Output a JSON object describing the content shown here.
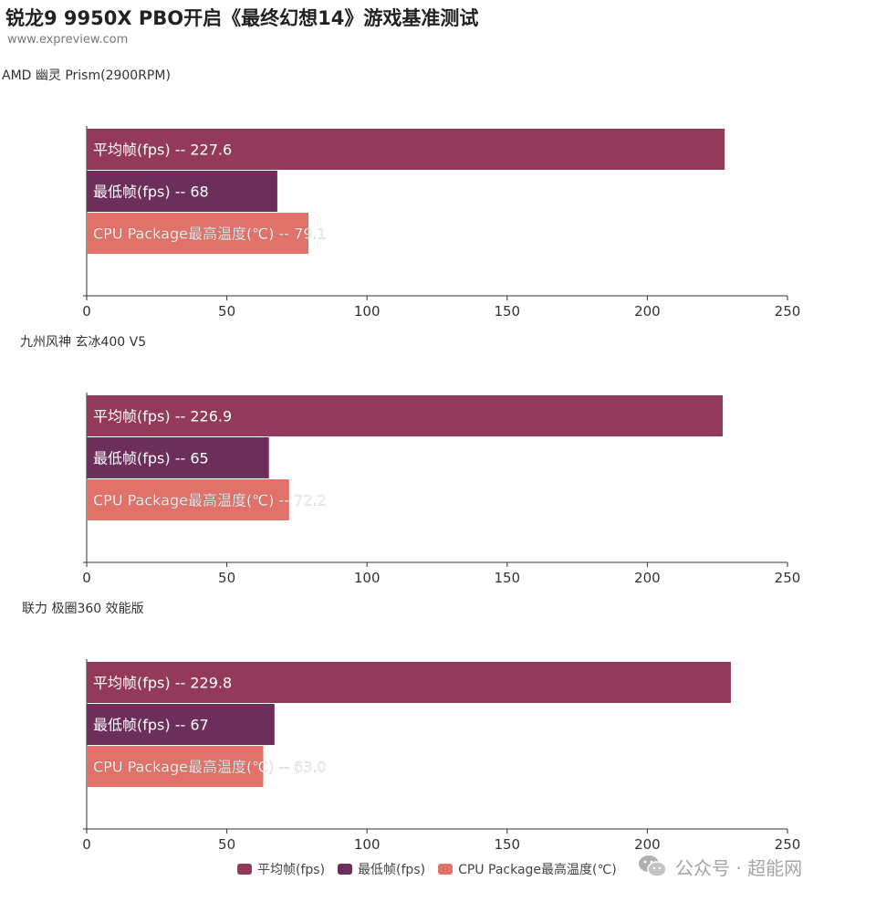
{
  "header": {
    "title": "锐龙9 9950X PBO开启《最终幻想14》游戏基准测试",
    "subtitle": "www.expreview.com"
  },
  "colors": {
    "avg_fps": "#93395a",
    "min_fps": "#6c2e5a",
    "cpu_temp": "#e0726a",
    "axis": "#333333"
  },
  "chart_data": [
    {
      "type": "bar",
      "orientation": "horizontal",
      "title": "AMD 幽灵 Prism(2900RPM)",
      "xlim": [
        0,
        250
      ],
      "xticks": [
        "0",
        "50",
        "100",
        "150",
        "200",
        "250"
      ],
      "series": [
        {
          "name": "平均帧(fps)",
          "value": 227.6,
          "label": "平均帧(fps)  --  227.6"
        },
        {
          "name": "最低帧(fps)",
          "value": 68,
          "label": "最低帧(fps)  --  68"
        },
        {
          "name": "CPU Package最高温度(℃)",
          "value": 79.1,
          "label": "CPU Package最高温度(℃)  --  79.1"
        }
      ]
    },
    {
      "type": "bar",
      "orientation": "horizontal",
      "title": "九州风神 玄冰400 V5",
      "xlim": [
        0,
        250
      ],
      "xticks": [
        "0",
        "50",
        "100",
        "150",
        "200",
        "250"
      ],
      "series": [
        {
          "name": "平均帧(fps)",
          "value": 226.9,
          "label": "平均帧(fps)  --  226.9"
        },
        {
          "name": "最低帧(fps)",
          "value": 65,
          "label": "最低帧(fps)  --  65"
        },
        {
          "name": "CPU Package最高温度(℃)",
          "value": 72.2,
          "label": "CPU Package最高温度(℃)  --  72.2"
        }
      ]
    },
    {
      "type": "bar",
      "orientation": "horizontal",
      "title": "联力 极圈360 效能版",
      "xlim": [
        0,
        250
      ],
      "xticks": [
        "0",
        "50",
        "100",
        "150",
        "200",
        "250"
      ],
      "series": [
        {
          "name": "平均帧(fps)",
          "value": 229.8,
          "label": "平均帧(fps)  --  229.8"
        },
        {
          "name": "最低帧(fps)",
          "value": 67,
          "label": "最低帧(fps)  --  67"
        },
        {
          "name": "CPU Package最高温度(℃)",
          "value": 63.0,
          "label": "CPU Package最高温度(℃)  --  63.0"
        }
      ]
    }
  ],
  "legend": {
    "items": [
      "平均帧(fps)",
      "最低帧(fps)",
      "CPU Package最高温度(℃)"
    ]
  },
  "watermark": {
    "icon": "wechat-icon",
    "text": "公众号 · 超能网"
  }
}
